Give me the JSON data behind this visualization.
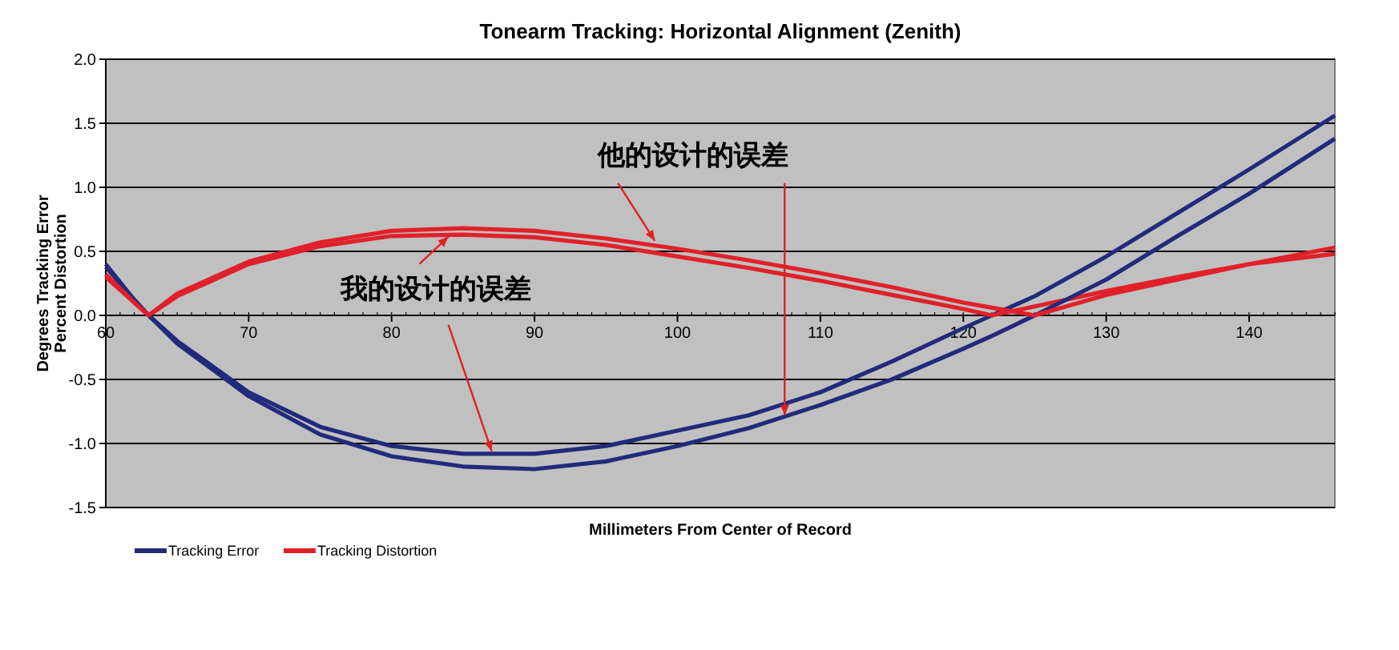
{
  "chart_data": {
    "type": "line",
    "title": "Tonearm Tracking:  Horizontal Alignment (Zenith)",
    "xlabel": "Millimeters From Center of Record",
    "ylabel": "Degrees Tracking Error\nPercent Distortion",
    "x": [
      60,
      62,
      63,
      65,
      70,
      75,
      80,
      85,
      90,
      95,
      100,
      105,
      110,
      115,
      120,
      122,
      125,
      130,
      135,
      140,
      146
    ],
    "series": [
      {
        "name": "Tracking Error",
        "color": "#222a7c",
        "values": [
          0.38,
          0.12,
          0,
          -0.2,
          -0.6,
          -0.87,
          -1.02,
          -1.08,
          -1.08,
          -1.02,
          -0.9,
          -0.78,
          -0.6,
          -0.36,
          -0.1,
          0,
          0.15,
          0.46,
          0.8,
          1.14,
          1.56
        ]
      },
      {
        "name": "Tracking Distortion",
        "color": "#e0202a",
        "values": [
          0.3,
          0.1,
          0,
          0.15,
          0.4,
          0.54,
          0.62,
          0.63,
          0.61,
          0.55,
          0.46,
          0.37,
          0.27,
          0.16,
          0.05,
          0,
          0.07,
          0.19,
          0.3,
          0.4,
          0.48
        ]
      },
      {
        "color": "#222a7c",
        "values": [
          0.4,
          0.12,
          0,
          -0.22,
          -0.63,
          -0.93,
          -1.1,
          -1.18,
          -1.2,
          -1.14,
          -1.02,
          -0.88,
          -0.7,
          -0.5,
          -0.26,
          -0.16,
          0,
          0.28,
          0.62,
          0.95,
          1.38
        ]
      },
      {
        "color": "#e0202a",
        "values": [
          0.32,
          0.1,
          0,
          0.17,
          0.42,
          0.57,
          0.66,
          0.68,
          0.66,
          0.6,
          0.52,
          0.43,
          0.33,
          0.22,
          0.1,
          0.06,
          0,
          0.16,
          0.28,
          0.4,
          0.53
        ]
      }
    ],
    "xlim": [
      60,
      146
    ],
    "xticks": [
      60,
      70,
      80,
      90,
      100,
      110,
      120,
      130,
      140
    ],
    "ylim": [
      -1.5,
      2.0
    ],
    "yticks": [
      {
        "value": -1.5,
        "label": "-1.5"
      },
      {
        "value": -1,
        "label": "-1.0"
      },
      {
        "value": -0.5,
        "label": "-0.5"
      },
      {
        "value": 0,
        "label": "0.0"
      },
      {
        "value": 0.5,
        "label": "0.5"
      },
      {
        "value": 1,
        "label": "1.0"
      },
      {
        "value": 1.5,
        "label": "1.5"
      },
      {
        "value": 2,
        "label": "2.0"
      }
    ],
    "grid": "y",
    "legend": "bottom left",
    "line_style": "solid",
    "annotations": [
      {
        "text": "他的设计的误差",
        "x": 107.5,
        "y": -0.78
      },
      {
        "text": "我的设计的误差",
        "x": 87,
        "y": -1.06
      }
    ]
  }
}
